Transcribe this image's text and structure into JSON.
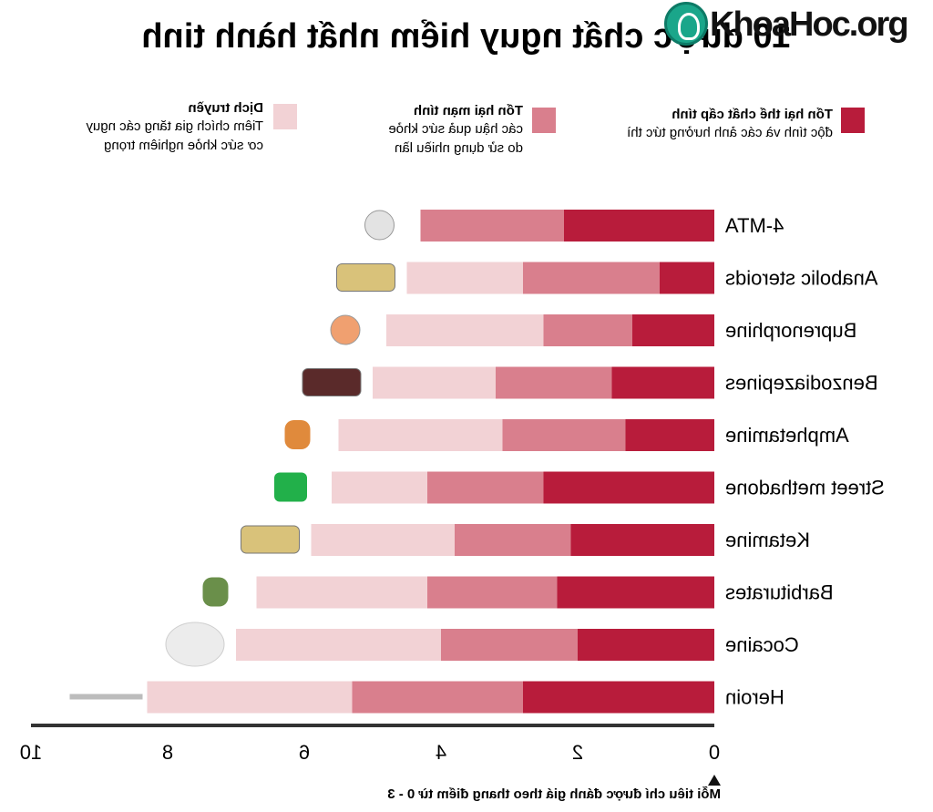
{
  "page": {
    "title": "10 dược chất nguy hiểm nhất hành tinh",
    "watermark": "KhoaHoc.org"
  },
  "legend": [
    {
      "name": "Tổn hại thể chất cấp tính",
      "desc": "độc tính và các ảnh hưởng tức thì",
      "color": "#b81c3b"
    },
    {
      "name": "Tổn hại mạn tính",
      "desc_lines": [
        "các hậu quả sức khỏe",
        "do sử dụng nhiều lần"
      ],
      "color": "#d97f8d"
    },
    {
      "name": "Dịch truyền",
      "desc_lines": [
        "Tiêm chích gia tăng các nguy",
        "cơ sức khỏe nghiêm trọng"
      ],
      "color": "#f2d2d5"
    }
  ],
  "chart_data": {
    "type": "bar",
    "orientation": "horizontal-stacked",
    "title": "10 dược chất nguy hiểm nhất hành tinh",
    "xlabel": "Mỗi tiêu chí được đánh giá theo thang điểm từ 0 - 3",
    "xlim": [
      0,
      10
    ],
    "xticks": [
      0,
      2,
      4,
      6,
      8,
      10
    ],
    "categories": [
      "4-MTA",
      "Anabolic steroids",
      "Buprenorphine",
      "Benzodiazepines",
      "Amphetamine",
      "Street methadone",
      "Ketamine",
      "Barbiturates",
      "Cocaine",
      "Heroin"
    ],
    "series": [
      {
        "name": "Tổn hại thể chất cấp tính",
        "color": "#b81c3b",
        "values": [
          2.2,
          0.8,
          1.2,
          1.5,
          1.3,
          2.5,
          2.1,
          2.3,
          2.0,
          2.8
        ]
      },
      {
        "name": "Tổn hại mạn tính",
        "color": "#d97f8d",
        "values": [
          2.1,
          2.0,
          1.3,
          1.7,
          1.8,
          1.7,
          1.7,
          1.9,
          2.0,
          2.5
        ]
      },
      {
        "name": "Dịch truyền",
        "color": "#f2d2d5",
        "values": [
          0.0,
          1.7,
          2.3,
          1.8,
          2.4,
          1.4,
          2.1,
          2.5,
          3.0,
          3.0
        ]
      }
    ],
    "icons": [
      "pill-icon",
      "vial-icon",
      "tablet-icon",
      "bottle-icon",
      "capsule-icon",
      "cup-icon",
      "vial-icon",
      "pills-icon",
      "powder-icon",
      "syringe-icon"
    ]
  }
}
